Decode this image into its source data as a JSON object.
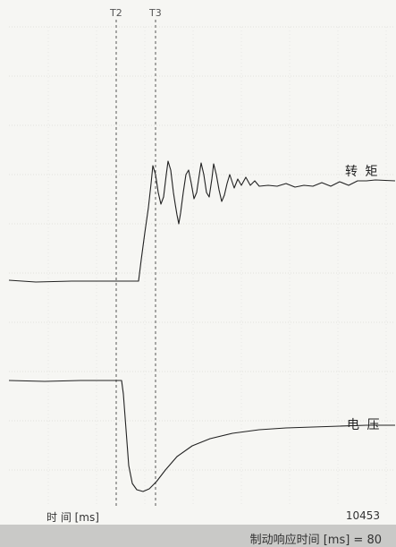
{
  "chart_data": {
    "type": "line",
    "markers": [
      {
        "label": "T2",
        "x": 130
      },
      {
        "label": "T3",
        "x": 174
      }
    ],
    "series": [
      {
        "name": "转 矩",
        "points": [
          [
            10,
            313
          ],
          [
            40,
            315
          ],
          [
            80,
            314
          ],
          [
            120,
            314
          ],
          [
            155,
            314
          ],
          [
            158,
            290
          ],
          [
            162,
            260
          ],
          [
            166,
            232
          ],
          [
            169,
            205
          ],
          [
            171,
            185
          ],
          [
            174,
            195
          ],
          [
            177,
            215
          ],
          [
            180,
            228
          ],
          [
            183,
            220
          ],
          [
            186,
            195
          ],
          [
            188,
            180
          ],
          [
            191,
            190
          ],
          [
            194,
            215
          ],
          [
            196,
            228
          ],
          [
            198,
            240
          ],
          [
            200,
            250
          ],
          [
            202,
            238
          ],
          [
            205,
            215
          ],
          [
            208,
            195
          ],
          [
            211,
            190
          ],
          [
            214,
            205
          ],
          [
            217,
            222
          ],
          [
            220,
            215
          ],
          [
            223,
            195
          ],
          [
            225,
            182
          ],
          [
            228,
            195
          ],
          [
            231,
            215
          ],
          [
            234,
            220
          ],
          [
            237,
            200
          ],
          [
            239,
            183
          ],
          [
            242,
            195
          ],
          [
            245,
            212
          ],
          [
            248,
            225
          ],
          [
            251,
            218
          ],
          [
            254,
            205
          ],
          [
            257,
            195
          ],
          [
            262,
            210
          ],
          [
            266,
            200
          ],
          [
            270,
            207
          ],
          [
            275,
            198
          ],
          [
            280,
            207
          ],
          [
            285,
            202
          ],
          [
            290,
            208
          ],
          [
            300,
            207
          ],
          [
            310,
            208
          ],
          [
            320,
            205
          ],
          [
            330,
            209
          ],
          [
            340,
            207
          ],
          [
            350,
            208
          ],
          [
            360,
            204
          ],
          [
            370,
            208
          ],
          [
            380,
            203
          ],
          [
            390,
            207
          ],
          [
            400,
            202
          ],
          [
            410,
            202
          ],
          [
            420,
            201
          ],
          [
            442,
            202
          ]
        ]
      },
      {
        "name": "电 压",
        "points": [
          [
            10,
            425
          ],
          [
            50,
            426
          ],
          [
            90,
            425
          ],
          [
            125,
            425
          ],
          [
            136,
            425
          ],
          [
            138,
            440
          ],
          [
            141,
            480
          ],
          [
            144,
            520
          ],
          [
            148,
            540
          ],
          [
            153,
            547
          ],
          [
            160,
            549
          ],
          [
            167,
            546
          ],
          [
            175,
            538
          ],
          [
            185,
            525
          ],
          [
            198,
            510
          ],
          [
            215,
            498
          ],
          [
            235,
            490
          ],
          [
            260,
            484
          ],
          [
            290,
            480
          ],
          [
            320,
            478
          ],
          [
            350,
            477
          ],
          [
            380,
            476
          ],
          [
            410,
            475
          ],
          [
            442,
            475
          ]
        ]
      }
    ],
    "xlabel": "时 间 [ms]",
    "x_count": "10453"
  },
  "status": {
    "text": "制动响应时间 [ms] = 80"
  }
}
